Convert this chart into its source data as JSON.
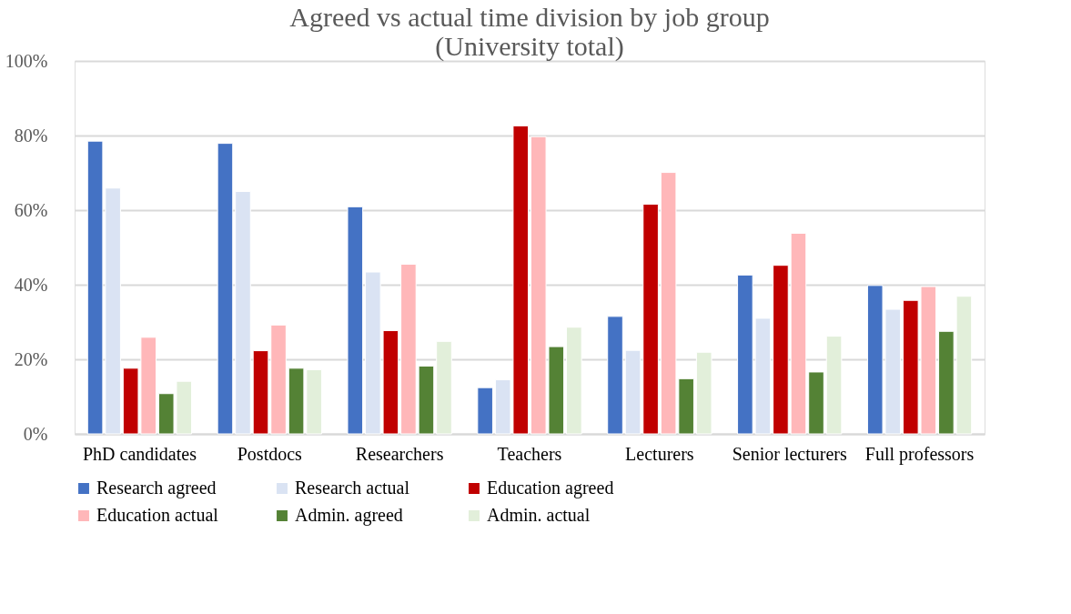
{
  "chart_data": {
    "type": "bar",
    "title": [
      "Agreed vs actual time division by job group",
      "(University total)"
    ],
    "categories": [
      "PhD candidates",
      "Postdocs",
      "Researchers",
      "Teachers",
      "Lecturers",
      "Senior lecturers",
      "Full professors"
    ],
    "series": [
      {
        "name": "Research agreed",
        "color": "#4472c4",
        "values": [
          78.5,
          77.9,
          60.9,
          12.4,
          31.5,
          42.6,
          39.8
        ]
      },
      {
        "name": "Research actual",
        "color": "#dae3f3",
        "values": [
          65.9,
          65.0,
          43.4,
          14.5,
          22.4,
          31.0,
          33.4
        ]
      },
      {
        "name": "Education agreed",
        "color": "#c00000",
        "values": [
          17.6,
          22.3,
          27.7,
          82.6,
          61.6,
          45.2,
          35.8
        ]
      },
      {
        "name": "Education actual",
        "color": "#ffb7b9",
        "values": [
          25.9,
          29.2,
          45.5,
          79.7,
          70.1,
          53.8,
          39.5
        ]
      },
      {
        "name": "Admin. agreed",
        "color": "#548235",
        "values": [
          10.8,
          17.6,
          18.2,
          23.4,
          14.8,
          16.6,
          27.5
        ]
      },
      {
        "name": "Admin. actual",
        "color": "#e2efda",
        "values": [
          14.1,
          17.2,
          24.8,
          28.6,
          21.9,
          26.2,
          36.9
        ]
      }
    ],
    "ylim": [
      0,
      100
    ],
    "yticks": [
      {
        "value": 0,
        "label": "0%"
      },
      {
        "value": 20,
        "label": "20%"
      },
      {
        "value": 40,
        "label": "40%"
      },
      {
        "value": 60,
        "label": "60%"
      },
      {
        "value": 80,
        "label": "80%"
      },
      {
        "value": 100,
        "label": "100%"
      }
    ],
    "grid": "y",
    "legend": "bottom"
  }
}
